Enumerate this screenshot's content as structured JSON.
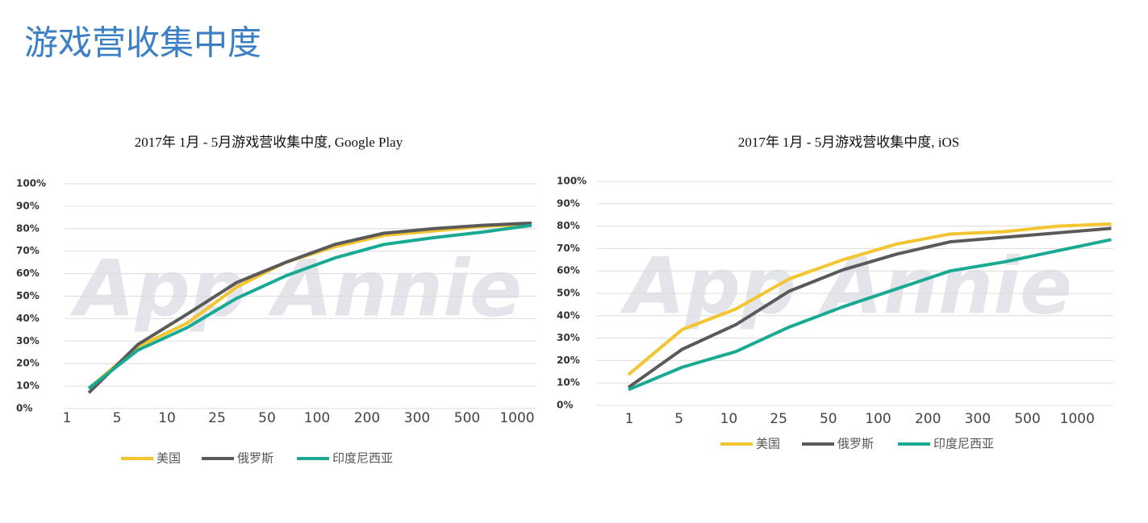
{
  "title": "游戏营收集中度",
  "chart_data": [
    {
      "type": "line",
      "title": "2017年 1月 - 5月游戏营收集中度, Google Play",
      "watermark": "App Annie",
      "categories": [
        "1",
        "5",
        "10",
        "25",
        "50",
        "100",
        "200",
        "300",
        "500",
        "1000"
      ],
      "ylim": [
        0,
        100
      ],
      "yticks": [
        {
          "value": 0,
          "label": "0%"
        },
        {
          "value": 10,
          "label": "10%"
        },
        {
          "value": 20,
          "label": "20%"
        },
        {
          "value": 30,
          "label": "30%"
        },
        {
          "value": 40,
          "label": "40%"
        },
        {
          "value": 50,
          "label": "50%"
        },
        {
          "value": 60,
          "label": "60%"
        },
        {
          "value": 70,
          "label": "70%"
        },
        {
          "value": 80,
          "label": "80%"
        },
        {
          "value": 90,
          "label": "90%"
        },
        {
          "value": 100,
          "label": "100%"
        }
      ],
      "grid": true,
      "series": [
        {
          "name": "美国",
          "color": "#f2c531",
          "values": [
            9,
            27.5,
            38,
            54,
            65,
            72,
            77,
            79,
            81,
            82
          ]
        },
        {
          "name": "俄罗斯",
          "color": "#5a5a5a",
          "values": [
            7,
            28.5,
            42,
            56,
            65,
            73,
            78,
            80,
            81.5,
            82.5
          ]
        },
        {
          "name": "印度尼西亚",
          "color": "#1aaa94",
          "values": [
            9,
            26,
            36,
            49,
            59,
            67,
            73,
            76,
            78.5,
            81.5
          ]
        }
      ]
    },
    {
      "type": "line",
      "title": "2017年 1月 - 5月游戏营收集中度, iOS",
      "watermark": "App Annie",
      "categories": [
        "1",
        "5",
        "10",
        "25",
        "50",
        "100",
        "200",
        "300",
        "500",
        "1000"
      ],
      "ylim": [
        0,
        100
      ],
      "yticks": [
        {
          "value": 0,
          "label": "0%"
        },
        {
          "value": 10,
          "label": "10%"
        },
        {
          "value": 20,
          "label": "20%"
        },
        {
          "value": 30,
          "label": "30%"
        },
        {
          "value": 40,
          "label": "40%"
        },
        {
          "value": 50,
          "label": "50%"
        },
        {
          "value": 60,
          "label": "60%"
        },
        {
          "value": 70,
          "label": "70%"
        },
        {
          "value": 80,
          "label": "80%"
        },
        {
          "value": 90,
          "label": "90%"
        },
        {
          "value": 100,
          "label": "100%"
        }
      ],
      "grid": true,
      "series": [
        {
          "name": "美国",
          "color": "#f2c531",
          "values": [
            13.7,
            33.8,
            43,
            56.5,
            65,
            72,
            76.5,
            77.5,
            80,
            81
          ]
        },
        {
          "name": "俄罗斯",
          "color": "#5a5a5a",
          "values": [
            8,
            25,
            36,
            51,
            60.5,
            67.5,
            73,
            75,
            77,
            79
          ]
        },
        {
          "name": "印度尼西亚",
          "color": "#1aaa94",
          "values": [
            7,
            17,
            24,
            35,
            44,
            52,
            60,
            64,
            69,
            74
          ]
        }
      ]
    }
  ]
}
